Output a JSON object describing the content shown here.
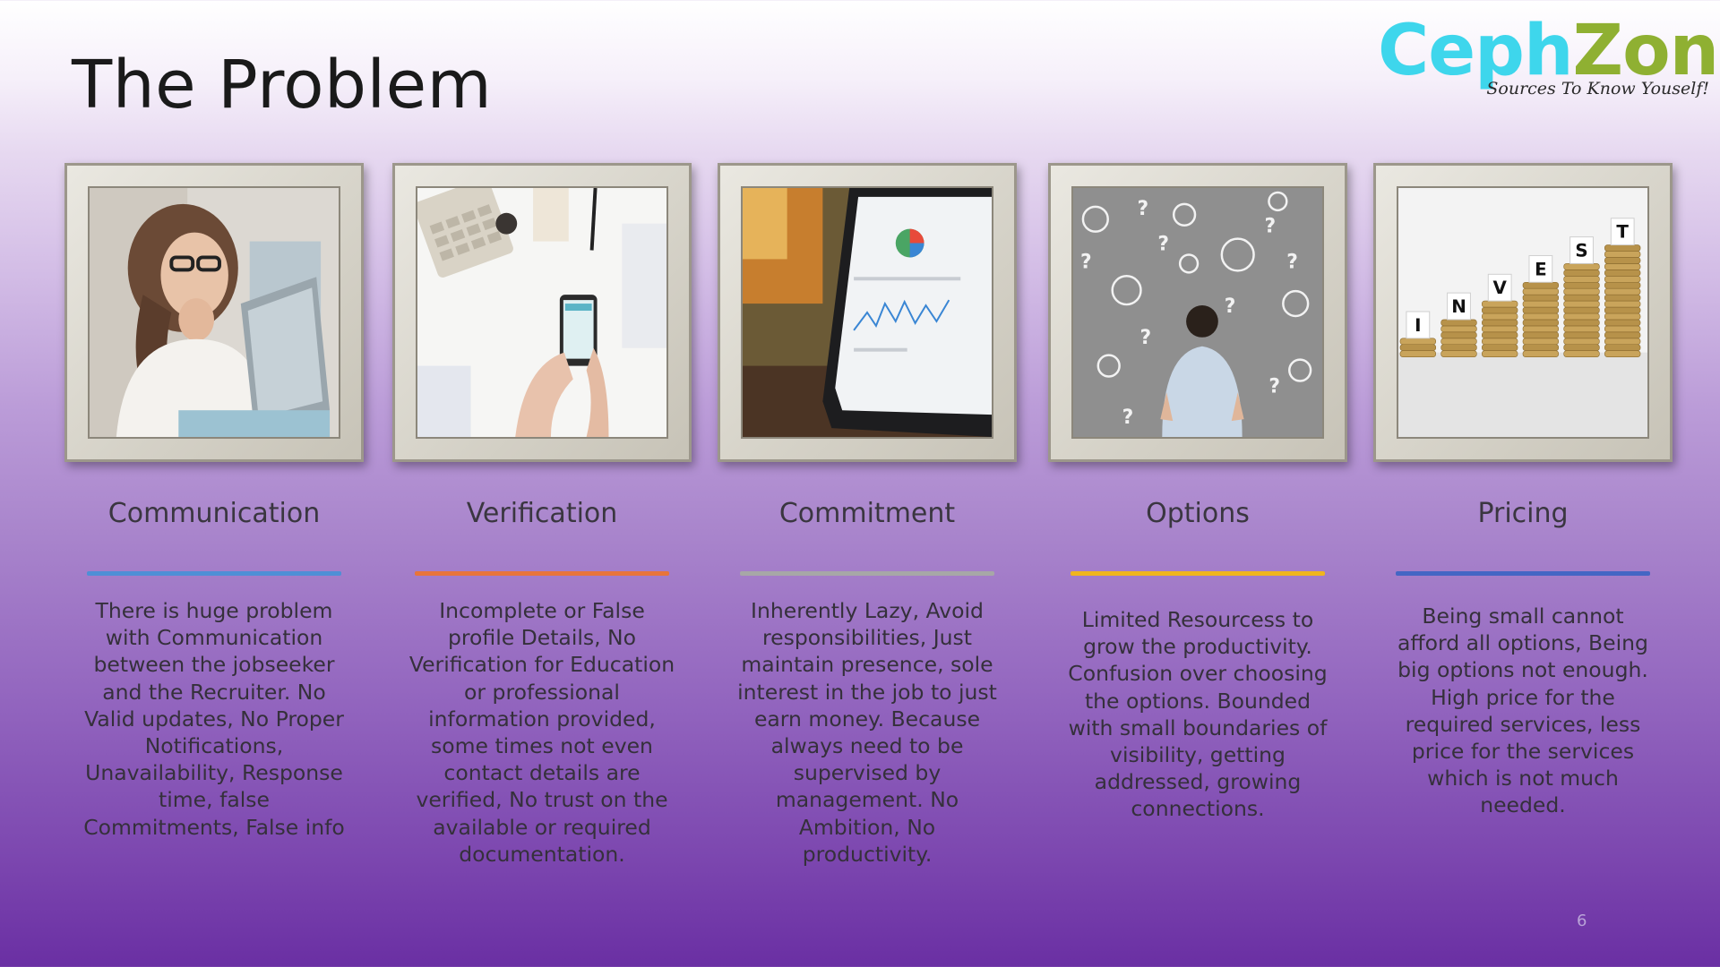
{
  "slide": {
    "title": "The Problem",
    "page_number": "6"
  },
  "logo": {
    "part1": "Ceph",
    "part2": "Zone",
    "tagline": "Sources To Know Youself!",
    "colors": {
      "ceph": "#3ed6ec",
      "zone": "#8fb032"
    }
  },
  "columns": [
    {
      "heading": "Communication",
      "accent": "#4f8fd6",
      "icon": "pensive-woman-laptop-photo",
      "description": "There is huge problem with Communication between the jobseeker and the Recruiter. No Valid updates, No Proper Notifications, Unavailability, Response time, false Commitments, False info"
    },
    {
      "heading": "Verification",
      "accent": "#e8743a",
      "icon": "phone-calculator-desk-photo",
      "description": "Incomplete or False profile Details, No Verification for Education or professional information provided, some times not even contact details are verified, No trust on the available or required documentation."
    },
    {
      "heading": "Commitment",
      "accent": "#a7a7a7",
      "icon": "tablet-analytics-photo",
      "description": "Inherently Lazy, Avoid responsibilities, Just maintain presence, sole interest in the job to just earn money. Because always need to be supervised by management. No Ambition, No productivity."
    },
    {
      "heading": "Options",
      "accent": "#f0b51e",
      "icon": "man-money-bags-wall-photo",
      "description": "Limited Resourcess to grow the productivity. Confusion over choosing the options. Bounded with small boundaries of visibility, getting addressed, growing connections."
    },
    {
      "heading": "Pricing",
      "accent": "#4466c4",
      "icon": "invest-coin-stacks-photo",
      "description": "Being small cannot afford all options, Being big options not enough. High price for the required services, less price for the services which is not much needed."
    }
  ],
  "invest_letters": [
    "I",
    "N",
    "V",
    "E",
    "S",
    "T"
  ]
}
